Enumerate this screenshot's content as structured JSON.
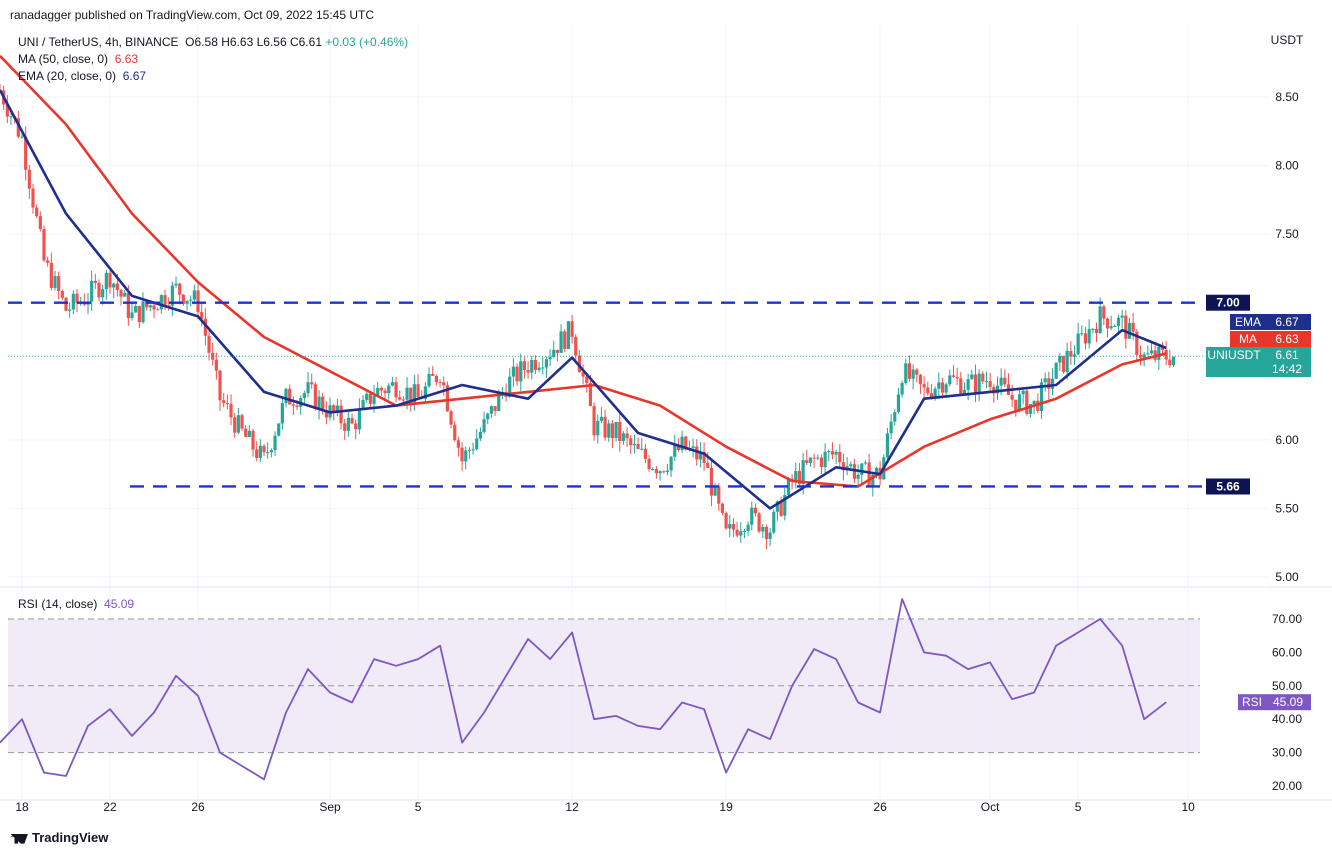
{
  "header": {
    "publisher": "ranadagger published on TradingView.com, Oct 09, 2022 15:45 UTC",
    "symbol": "UNI / TetherUS, 4h, BINANCE",
    "ohlc": {
      "open": "O6.58",
      "high": "H6.63",
      "low": "L6.56",
      "close": "C6.61",
      "change": "+0.03 (+0.46%)"
    },
    "ma_label": "MA (50, close, 0)",
    "ma_value": "6.63",
    "ema_label": "EMA (20, close, 0)",
    "ema_value": "6.67"
  },
  "rsi_header": {
    "label": "RSI (14, close)",
    "value": "45.09"
  },
  "logo": "TradingView",
  "colors": {
    "up": "#26a69a",
    "down": "#ef5350",
    "ma": "#e8362d",
    "ema": "#1e2f8c",
    "level": "#1c31d6",
    "rsi": "#7e57c2",
    "rsi_band": "#ede7f6"
  },
  "chart_data": [
    {
      "type": "candlestick",
      "currency": "USDT",
      "ylim": [
        5.0,
        8.75
      ],
      "y_ticks": [
        "8.50",
        "8.00",
        "7.50",
        "6.00",
        "5.50",
        "5.00"
      ],
      "x_ticks": [
        "18",
        "22",
        "26",
        "Sep",
        "5",
        "12",
        "19",
        "26",
        "Oct",
        "5",
        "10"
      ],
      "horizontal_levels": [
        {
          "value": 7.0,
          "label": "7.00"
        },
        {
          "value": 5.66,
          "label": "5.66"
        }
      ],
      "price_tags": [
        {
          "name": "EMA",
          "label": "EMA",
          "value": "6.67"
        },
        {
          "name": "MA",
          "label": "MA",
          "value": "6.63"
        },
        {
          "name": "last",
          "label": "UNIUSDT",
          "value": "6.61",
          "countdown": "14:42"
        }
      ],
      "price_path": [
        [
          "Aug 17",
          8.55
        ],
        [
          "Aug 18",
          8.2
        ],
        [
          "Aug 19",
          7.3
        ],
        [
          "Aug 20",
          6.95
        ],
        [
          "Aug 21",
          7.05
        ],
        [
          "Aug 22",
          7.2
        ],
        [
          "Aug 23",
          6.9
        ],
        [
          "Aug 24",
          7.0
        ],
        [
          "Aug 25",
          7.1
        ],
        [
          "Aug 26",
          7.0
        ],
        [
          "Aug 27",
          6.3
        ],
        [
          "Aug 28",
          6.05
        ],
        [
          "Aug 29",
          5.85
        ],
        [
          "Aug 30",
          6.3
        ],
        [
          "Aug 31",
          6.35
        ],
        [
          "Sep 1",
          6.2
        ],
        [
          "Sep 2",
          6.1
        ],
        [
          "Sep 3",
          6.35
        ],
        [
          "Sep 4",
          6.4
        ],
        [
          "Sep 5",
          6.3
        ],
        [
          "Sep 6",
          6.5
        ],
        [
          "Sep 7",
          5.85
        ],
        [
          "Sep 8",
          6.1
        ],
        [
          "Sep 9",
          6.4
        ],
        [
          "Sep 10",
          6.55
        ],
        [
          "Sep 11",
          6.65
        ],
        [
          "Sep 12",
          6.8
        ],
        [
          "Sep 13",
          6.1
        ],
        [
          "Sep 14",
          6.05
        ],
        [
          "Sep 15",
          5.9
        ],
        [
          "Sep 16",
          5.8
        ],
        [
          "Sep 17",
          5.95
        ],
        [
          "Sep 18",
          5.85
        ],
        [
          "Sep 19",
          5.3
        ],
        [
          "Sep 20",
          5.45
        ],
        [
          "Sep 21",
          5.35
        ],
        [
          "Sep 22",
          5.7
        ],
        [
          "Sep 23",
          5.85
        ],
        [
          "Sep 24",
          5.9
        ],
        [
          "Sep 25",
          5.75
        ],
        [
          "Sep 26",
          5.75
        ],
        [
          "Sep 27",
          6.5
        ],
        [
          "Sep 28",
          6.35
        ],
        [
          "Sep 29",
          6.45
        ],
        [
          "Sep 30",
          6.4
        ],
        [
          "Oct 1",
          6.45
        ],
        [
          "Oct 2",
          6.3
        ],
        [
          "Oct 3",
          6.25
        ],
        [
          "Oct 4",
          6.5
        ],
        [
          "Oct 5",
          6.7
        ],
        [
          "Oct 6",
          6.9
        ],
        [
          "Oct 7",
          6.85
        ],
        [
          "Oct 8",
          6.6
        ],
        [
          "Oct 9",
          6.61
        ]
      ],
      "ma50_path": [
        [
          "Aug 17",
          8.8
        ],
        [
          "Aug 20",
          8.3
        ],
        [
          "Aug 23",
          7.65
        ],
        [
          "Aug 26",
          7.15
        ],
        [
          "Aug 29",
          6.75
        ],
        [
          "Sep 1",
          6.5
        ],
        [
          "Sep 4",
          6.25
        ],
        [
          "Sep 7",
          6.3
        ],
        [
          "Sep 10",
          6.35
        ],
        [
          "Sep 13",
          6.4
        ],
        [
          "Sep 16",
          6.25
        ],
        [
          "Sep 19",
          5.95
        ],
        [
          "Sep 22",
          5.7
        ],
        [
          "Sep 25",
          5.66
        ],
        [
          "Sep 28",
          5.95
        ],
        [
          "Oct 1",
          6.15
        ],
        [
          "Oct 4",
          6.3
        ],
        [
          "Oct 7",
          6.55
        ],
        [
          "Oct 9",
          6.63
        ]
      ],
      "ema20_path": [
        [
          "Aug 17",
          8.55
        ],
        [
          "Aug 20",
          7.65
        ],
        [
          "Aug 23",
          7.05
        ],
        [
          "Aug 26",
          6.9
        ],
        [
          "Aug 29",
          6.35
        ],
        [
          "Sep 1",
          6.2
        ],
        [
          "Sep 4",
          6.25
        ],
        [
          "Sep 7",
          6.4
        ],
        [
          "Sep 10",
          6.3
        ],
        [
          "Sep 12",
          6.6
        ],
        [
          "Sep 15",
          6.05
        ],
        [
          "Sep 18",
          5.9
        ],
        [
          "Sep 21",
          5.5
        ],
        [
          "Sep 24",
          5.8
        ],
        [
          "Sep 26",
          5.75
        ],
        [
          "Sep 28",
          6.3
        ],
        [
          "Oct 1",
          6.35
        ],
        [
          "Oct 4",
          6.4
        ],
        [
          "Oct 7",
          6.8
        ],
        [
          "Oct 9",
          6.67
        ]
      ]
    },
    {
      "type": "line",
      "name": "RSI (14, close)",
      "ylim": [
        15,
        77
      ],
      "y_ticks": [
        "70.00",
        "60.00",
        "50.00",
        "40.00",
        "30.00",
        "20.00"
      ],
      "band": [
        30,
        70
      ],
      "midline": 50,
      "value_tag": {
        "label": "RSI",
        "value": "45.09"
      },
      "rsi_path": [
        [
          "Aug 17",
          33
        ],
        [
          "Aug 18",
          40
        ],
        [
          "Aug 19",
          24
        ],
        [
          "Aug 20",
          23
        ],
        [
          "Aug 21",
          38
        ],
        [
          "Aug 22",
          43
        ],
        [
          "Aug 23",
          35
        ],
        [
          "Aug 24",
          42
        ],
        [
          "Aug 25",
          53
        ],
        [
          "Aug 26",
          47
        ],
        [
          "Aug 27",
          30
        ],
        [
          "Aug 28",
          26
        ],
        [
          "Aug 29",
          22
        ],
        [
          "Aug 30",
          42
        ],
        [
          "Aug 31",
          55
        ],
        [
          "Sep 1",
          48
        ],
        [
          "Sep 2",
          45
        ],
        [
          "Sep 3",
          58
        ],
        [
          "Sep 4",
          56
        ],
        [
          "Sep 5",
          58
        ],
        [
          "Sep 6",
          62
        ],
        [
          "Sep 7",
          33
        ],
        [
          "Sep 8",
          42
        ],
        [
          "Sep 9",
          53
        ],
        [
          "Sep 10",
          64
        ],
        [
          "Sep 11",
          58
        ],
        [
          "Sep 12",
          66
        ],
        [
          "Sep 13",
          40
        ],
        [
          "Sep 14",
          41
        ],
        [
          "Sep 15",
          38
        ],
        [
          "Sep 16",
          37
        ],
        [
          "Sep 17",
          45
        ],
        [
          "Sep 18",
          43
        ],
        [
          "Sep 19",
          24
        ],
        [
          "Sep 20",
          37
        ],
        [
          "Sep 21",
          34
        ],
        [
          "Sep 22",
          50
        ],
        [
          "Sep 23",
          61
        ],
        [
          "Sep 24",
          58
        ],
        [
          "Sep 25",
          45
        ],
        [
          "Sep 26",
          42
        ],
        [
          "Sep 27",
          76
        ],
        [
          "Sep 28",
          60
        ],
        [
          "Sep 29",
          59
        ],
        [
          "Sep 30",
          55
        ],
        [
          "Oct 1",
          57
        ],
        [
          "Oct 2",
          46
        ],
        [
          "Oct 3",
          48
        ],
        [
          "Oct 4",
          62
        ],
        [
          "Oct 5",
          66
        ],
        [
          "Oct 6",
          70
        ],
        [
          "Oct 7",
          62
        ],
        [
          "Oct 8",
          40
        ],
        [
          "Oct 9",
          45.09
        ]
      ]
    }
  ]
}
